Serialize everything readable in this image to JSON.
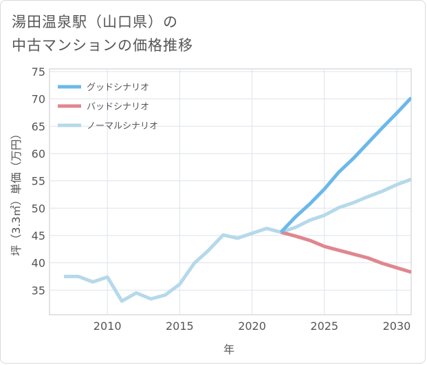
{
  "title_line1": "湯田温泉駅（山口県）の",
  "title_line2": "中古マンションの価格推移",
  "chart_data": {
    "type": "line",
    "xlabel": "年",
    "ylabel": "坪（3.3㎡）単価（万円）",
    "xlim": [
      2006,
      2031
    ],
    "ylim": [
      30.5,
      75.5
    ],
    "xticks": [
      2010,
      2015,
      2020,
      2025,
      2030
    ],
    "yticks": [
      35,
      40,
      45,
      50,
      55,
      60,
      65,
      70,
      75
    ],
    "grid": true,
    "legend_position": "top-left",
    "series": [
      {
        "name": "グッドシナリオ",
        "color": "#6bb8ea",
        "x": [
          2022,
          2023,
          2024,
          2025,
          2026,
          2027,
          2028,
          2029,
          2030,
          2031
        ],
        "y": [
          45.6,
          48.4,
          50.8,
          53.5,
          56.6,
          59.1,
          61.9,
          64.7,
          67.4,
          70.2
        ]
      },
      {
        "name": "バッドシナリオ",
        "color": "#e0868f",
        "x": [
          2022,
          2023,
          2024,
          2025,
          2026,
          2027,
          2028,
          2029,
          2030,
          2031
        ],
        "y": [
          45.6,
          44.9,
          44.1,
          43.0,
          42.3,
          41.6,
          40.9,
          39.9,
          39.1,
          38.3
        ]
      },
      {
        "name": "ノーマルシナリオ",
        "color": "#b5d9ea",
        "x": [
          2007,
          2008,
          2009,
          2010,
          2011,
          2012,
          2013,
          2014,
          2015,
          2016,
          2017,
          2018,
          2019,
          2020,
          2021,
          2022,
          2023,
          2024,
          2025,
          2026,
          2027,
          2028,
          2029,
          2030,
          2031
        ],
        "y": [
          37.5,
          37.5,
          36.5,
          37.4,
          33.0,
          34.5,
          33.4,
          34.1,
          36.1,
          39.9,
          42.3,
          45.1,
          44.5,
          45.4,
          46.3,
          45.6,
          46.5,
          47.8,
          48.7,
          50.1,
          51.0,
          52.1,
          53.1,
          54.3,
          55.3
        ]
      }
    ]
  }
}
